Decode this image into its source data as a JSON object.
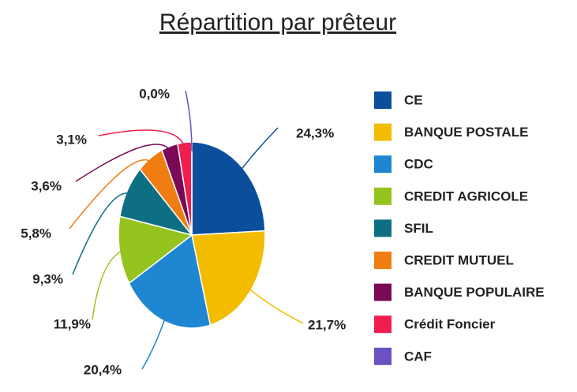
{
  "chart_data": {
    "type": "pie",
    "title": "Répartition par prêteur",
    "categories": [
      "CE",
      "BANQUE POSTALE",
      "CDC",
      "CREDIT AGRICOLE",
      "SFIL",
      "CREDIT MUTUEL",
      "BANQUE POPULAIRE",
      "Crédit Foncier",
      "CAF"
    ],
    "values": [
      24.3,
      21.7,
      20.4,
      11.9,
      9.3,
      5.8,
      3.6,
      3.1,
      0.0
    ],
    "value_labels": [
      "24,3%",
      "21,7%",
      "20,4%",
      "11,9%",
      "9,3%",
      "5,8%",
      "3,6%",
      "3,1%",
      "0,0%"
    ],
    "colors": [
      "#0b4f9c",
      "#f2bd00",
      "#1f86d1",
      "#95c41f",
      "#0f6f82",
      "#f07d12",
      "#7a0a56",
      "#f01e4f",
      "#6a52c0"
    ],
    "legend": "right"
  }
}
